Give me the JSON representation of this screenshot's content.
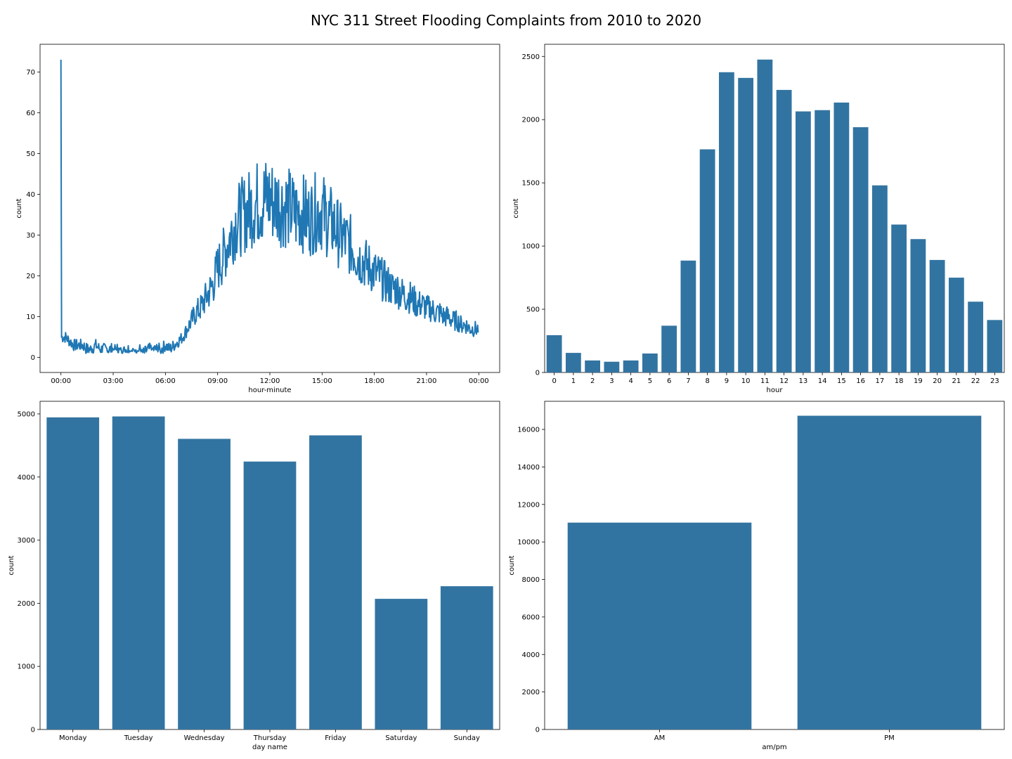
{
  "figure": {
    "title": "NYC 311 Street Flooding Complaints from 2010 to 2020"
  },
  "colors": {
    "bar": "#3274a1",
    "line": "#1f77b4",
    "axis": "#000000"
  },
  "chart_data": [
    {
      "type": "line",
      "xlabel": "hour-minute",
      "ylabel": "count",
      "x_range_minutes": [
        0,
        1439
      ],
      "xlim_minutes": [
        -72,
        1512
      ],
      "ylim": [
        -3.7,
        76.8
      ],
      "xticks": [
        {
          "value": 0,
          "label": "00:00"
        },
        {
          "value": 180,
          "label": "03:00"
        },
        {
          "value": 360,
          "label": "06:00"
        },
        {
          "value": 540,
          "label": "09:00"
        },
        {
          "value": 720,
          "label": "12:00"
        },
        {
          "value": 900,
          "label": "15:00"
        },
        {
          "value": 1080,
          "label": "18:00"
        },
        {
          "value": 1260,
          "label": "21:00"
        },
        {
          "value": 1440,
          "label": "00:00"
        }
      ],
      "yticks": [
        0,
        10,
        20,
        30,
        40,
        50,
        60,
        70
      ],
      "series": [
        {
          "sample_every_minutes": 15,
          "note_peak_at_00:00": 73,
          "values": [
            73,
            5,
            4,
            3,
            3,
            3,
            2,
            2,
            3,
            2,
            2,
            2,
            2,
            2,
            1,
            2,
            2,
            1,
            2,
            1,
            2,
            2,
            2,
            2,
            3,
            2,
            3,
            4,
            5,
            7,
            9,
            11,
            12,
            14,
            16,
            18,
            22,
            24,
            27,
            30,
            33,
            34,
            35,
            36,
            37,
            38,
            38,
            39,
            39,
            38,
            38,
            37,
            37,
            36,
            35,
            36,
            35,
            34,
            35,
            36,
            36,
            34,
            33,
            32,
            30,
            29,
            28,
            27,
            25,
            24,
            23,
            22,
            21,
            20,
            19,
            18,
            17,
            17,
            16,
            15,
            15,
            14,
            13,
            13,
            12,
            12,
            11,
            11,
            10,
            10,
            9,
            9,
            8,
            8,
            7,
            7
          ]
        }
      ]
    },
    {
      "type": "bar",
      "xlabel": "hour",
      "ylabel": "count",
      "ylim": [
        0,
        2596
      ],
      "yticks": [
        0,
        500,
        1000,
        1500,
        2000,
        2500
      ],
      "categories": [
        "0",
        "1",
        "2",
        "3",
        "4",
        "5",
        "6",
        "7",
        "8",
        "9",
        "10",
        "11",
        "12",
        "13",
        "14",
        "15",
        "16",
        "17",
        "18",
        "19",
        "20",
        "21",
        "22",
        "23"
      ],
      "values": [
        295,
        155,
        95,
        85,
        95,
        150,
        370,
        885,
        1765,
        2375,
        2330,
        2475,
        2235,
        2065,
        2075,
        2135,
        1940,
        1480,
        1170,
        1055,
        890,
        750,
        560,
        415
      ]
    },
    {
      "type": "bar",
      "xlabel": "day name",
      "ylabel": "count",
      "ylim": [
        0,
        5200
      ],
      "yticks": [
        0,
        1000,
        2000,
        3000,
        4000,
        5000
      ],
      "categories": [
        "Monday",
        "Tuesday",
        "Wednesday",
        "Thursday",
        "Friday",
        "Saturday",
        "Sunday"
      ],
      "values": [
        4945,
        4960,
        4605,
        4245,
        4660,
        2070,
        2270
      ]
    },
    {
      "type": "bar",
      "xlabel": "am/pm",
      "ylabel": "count",
      "ylim": [
        0,
        17500
      ],
      "yticks": [
        0,
        2000,
        4000,
        6000,
        8000,
        10000,
        12000,
        14000,
        16000
      ],
      "categories": [
        "AM",
        "PM"
      ],
      "values": [
        11030,
        16730
      ]
    }
  ]
}
